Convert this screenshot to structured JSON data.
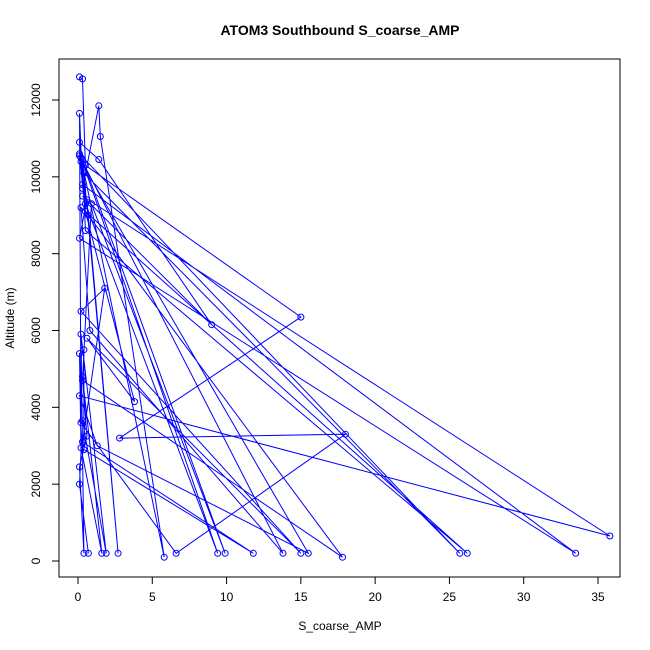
{
  "chart_data": {
    "type": "line",
    "title": "ATOM3 Southbound S_coarse_AMP",
    "xlabel": "S_coarse_AMP",
    "ylabel": "Altitude (m)",
    "xlim": [
      0,
      36
    ],
    "ylim": [
      0,
      12700
    ],
    "x_ticks": [
      0,
      5,
      10,
      15,
      20,
      25,
      30,
      35
    ],
    "y_ticks": [
      0,
      2000,
      4000,
      6000,
      8000,
      10000,
      12000
    ],
    "x_tick_labels": [
      "0",
      "5",
      "10",
      "15",
      "20",
      "25",
      "30",
      "35"
    ],
    "y_tick_labels": [
      "0",
      "2000",
      "4000",
      "6000",
      "8000",
      "10000",
      "12000"
    ],
    "grid": false,
    "marker": "open-circle",
    "series": [
      {
        "color": "#0000ff",
        "points": [
          [
            0.1,
            12600
          ],
          [
            0.3,
            12550
          ],
          [
            0.5,
            10300
          ],
          [
            15.0,
            6350
          ],
          [
            2.8,
            3200
          ],
          [
            18.0,
            3300
          ],
          [
            6.6,
            200
          ],
          [
            0.2,
            3600
          ],
          [
            0.1,
            11650
          ],
          [
            0.3,
            9700
          ],
          [
            1.4,
            11850
          ],
          [
            1.5,
            11050
          ],
          [
            5.8,
            100
          ],
          [
            0.2,
            10500
          ],
          [
            9.4,
            200
          ],
          [
            0.5,
            9300
          ],
          [
            0.1,
            10900
          ],
          [
            1.4,
            10450
          ],
          [
            9.0,
            6150
          ],
          [
            0.3,
            9500
          ],
          [
            35.8,
            650
          ],
          [
            0.1,
            4300
          ],
          [
            1.3,
            3000
          ],
          [
            15.5,
            200
          ],
          [
            0.2,
            10400
          ],
          [
            0.3,
            9800
          ],
          [
            33.5,
            200
          ],
          [
            0.1,
            8400
          ],
          [
            0.6,
            9400
          ],
          [
            2.7,
            200
          ],
          [
            0.4,
            10100
          ],
          [
            25.7,
            200
          ],
          [
            0.1,
            10600
          ],
          [
            0.7,
            9000
          ],
          [
            17.8,
            100
          ],
          [
            0.3,
            4700
          ],
          [
            0.9,
            9300
          ],
          [
            9.9,
            200
          ],
          [
            0.3,
            10450
          ],
          [
            0.5,
            8600
          ],
          [
            26.2,
            200
          ],
          [
            0.2,
            9200
          ],
          [
            0.8,
            6000
          ],
          [
            13.8,
            200
          ],
          [
            0.1,
            10550
          ],
          [
            0.5,
            9100
          ],
          [
            3.8,
            4150
          ],
          [
            0.6,
            5800
          ],
          [
            15.0,
            200
          ],
          [
            0.2,
            6500
          ],
          [
            1.8,
            7100
          ],
          [
            0.3,
            3100
          ],
          [
            11.8,
            200
          ],
          [
            0.4,
            2900
          ],
          [
            0.4,
            5500
          ],
          [
            0.1,
            5400
          ],
          [
            0.2,
            2950
          ],
          [
            1.6,
            200
          ],
          [
            0.3,
            4800
          ],
          [
            0.6,
            3250
          ],
          [
            0.1,
            2450
          ],
          [
            0.4,
            200
          ],
          [
            0.2,
            5900
          ],
          [
            1.9,
            200
          ],
          [
            0.3,
            3650
          ],
          [
            0.1,
            2000
          ],
          [
            0.7,
            200
          ]
        ]
      }
    ]
  }
}
